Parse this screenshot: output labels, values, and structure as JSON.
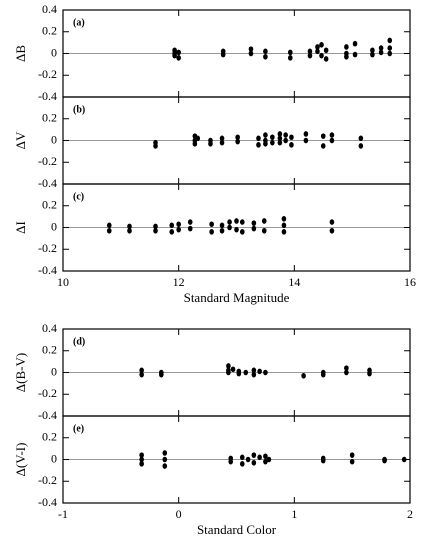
{
  "chart_data": [
    {
      "type": "scatter",
      "label": "(a)",
      "ylabel": "ΔB",
      "color": "#000000",
      "x": [
        11.93,
        11.93,
        11.93,
        12.0,
        12.0,
        12.77,
        12.77,
        13.25,
        13.25,
        13.5,
        13.5,
        13.93,
        13.93,
        14.27,
        14.27,
        14.4,
        14.4,
        14.47,
        14.47,
        14.55,
        14.55,
        14.9,
        14.9,
        14.9,
        15.05,
        15.05,
        15.35,
        15.35,
        15.5,
        15.5,
        15.65,
        15.65,
        15.65
      ],
      "y": [
        0.03,
        0.0,
        -0.02,
        -0.04,
        0.01,
        0.02,
        -0.01,
        0.04,
        0.0,
        0.02,
        -0.03,
        0.01,
        -0.04,
        -0.02,
        0.02,
        0.06,
        0.02,
        0.08,
        -0.02,
        0.03,
        -0.05,
        0.06,
        0.0,
        -0.03,
        0.09,
        -0.01,
        0.03,
        -0.01,
        0.05,
        0.01,
        0.12,
        0.05,
        0.0
      ],
      "xlim": [
        10,
        16
      ],
      "ylim": [
        -0.4,
        0.4
      ],
      "yticks": [
        -0.4,
        -0.2,
        0,
        0.2,
        0.4
      ]
    },
    {
      "type": "scatter",
      "label": "(b)",
      "ylabel": "ΔV",
      "color": "#000000",
      "x": [
        11.6,
        11.6,
        12.28,
        12.28,
        12.28,
        12.33,
        12.55,
        12.55,
        12.75,
        12.75,
        13.02,
        13.02,
        13.38,
        13.38,
        13.5,
        13.5,
        13.5,
        13.62,
        13.62,
        13.75,
        13.75,
        13.75,
        13.85,
        13.85,
        13.95,
        13.95,
        14.2,
        14.2,
        14.5,
        14.5,
        14.65,
        14.65,
        15.15,
        15.15
      ],
      "y": [
        -0.02,
        -0.05,
        0.04,
        0.0,
        -0.03,
        0.02,
        0.0,
        -0.03,
        0.02,
        -0.02,
        0.03,
        -0.01,
        0.02,
        -0.04,
        0.05,
        0.0,
        -0.03,
        0.03,
        -0.02,
        0.06,
        0.02,
        -0.02,
        0.05,
        0.0,
        0.03,
        -0.04,
        0.06,
        0.0,
        0.04,
        -0.05,
        0.05,
        0.0,
        0.02,
        -0.05
      ],
      "xlim": [
        10,
        16
      ],
      "ylim": [
        -0.4,
        0.4
      ],
      "yticks": [
        -0.4,
        -0.2,
        0,
        0.2
      ]
    },
    {
      "type": "scatter",
      "label": "(c)",
      "ylabel": "ΔI",
      "xlabel": "Standard Magnitude",
      "color": "#000000",
      "x": [
        10.8,
        10.8,
        11.15,
        11.15,
        11.6,
        11.6,
        11.88,
        11.88,
        12.0,
        12.0,
        12.2,
        12.2,
        12.57,
        12.57,
        12.75,
        12.75,
        12.88,
        12.88,
        13.0,
        13.0,
        13.1,
        13.1,
        13.3,
        13.3,
        13.48,
        13.48,
        13.82,
        13.82,
        13.82,
        14.65,
        14.65
      ],
      "y": [
        0.02,
        -0.03,
        0.01,
        -0.03,
        0.01,
        -0.03,
        -0.04,
        0.02,
        0.03,
        -0.02,
        0.05,
        -0.01,
        0.03,
        -0.04,
        0.02,
        -0.03,
        0.05,
        0.0,
        0.06,
        -0.02,
        0.05,
        -0.04,
        0.04,
        -0.01,
        0.06,
        -0.03,
        0.08,
        0.02,
        -0.04,
        0.05,
        -0.03
      ],
      "xlim": [
        10,
        16
      ],
      "xticks": [
        10,
        12,
        14,
        16
      ],
      "ylim": [
        -0.4,
        0.4
      ],
      "yticks": [
        -0.4,
        -0.2,
        0,
        0.2
      ]
    },
    {
      "type": "scatter",
      "label": "(d)",
      "ylabel": "Δ(B-V)",
      "color": "#000000",
      "x": [
        -0.32,
        -0.32,
        -0.15,
        -0.15,
        0.43,
        0.43,
        0.43,
        0.47,
        0.52,
        0.52,
        0.58,
        0.65,
        0.65,
        0.7,
        0.75,
        1.08,
        1.25,
        1.25,
        1.45,
        1.45,
        1.65,
        1.65
      ],
      "y": [
        0.02,
        -0.02,
        0.0,
        -0.02,
        0.06,
        0.02,
        0.0,
        0.03,
        0.01,
        -0.01,
        0.0,
        0.02,
        -0.02,
        0.01,
        0.0,
        -0.03,
        0.0,
        -0.02,
        0.04,
        0.0,
        0.02,
        -0.01
      ],
      "xlim": [
        -1,
        2
      ],
      "ylim": [
        -0.4,
        0.4
      ],
      "yticks": [
        -0.4,
        -0.2,
        0,
        0.2,
        0.4
      ]
    },
    {
      "type": "scatter",
      "label": "(e)",
      "ylabel": "Δ(V-I)",
      "xlabel": "Standard Color",
      "color": "#000000",
      "x": [
        -0.32,
        -0.32,
        -0.32,
        -0.12,
        -0.12,
        -0.12,
        0.45,
        0.45,
        0.55,
        0.55,
        0.6,
        0.65,
        0.65,
        0.7,
        0.75,
        0.75,
        0.78,
        1.25,
        1.25,
        1.5,
        1.5,
        1.78,
        1.78,
        1.95
      ],
      "y": [
        0.04,
        0.0,
        -0.04,
        0.06,
        0.0,
        -0.06,
        0.01,
        -0.02,
        0.02,
        -0.04,
        0.0,
        0.04,
        -0.03,
        0.02,
        0.03,
        -0.02,
        0.0,
        0.01,
        -0.01,
        0.04,
        -0.02,
        0.0,
        -0.01,
        0.0
      ],
      "xlim": [
        -1,
        2
      ],
      "xticks": [
        -1,
        0,
        1,
        2
      ],
      "ylim": [
        -0.4,
        0.4
      ],
      "yticks": [
        -0.4,
        -0.2,
        0,
        0.2
      ]
    }
  ]
}
